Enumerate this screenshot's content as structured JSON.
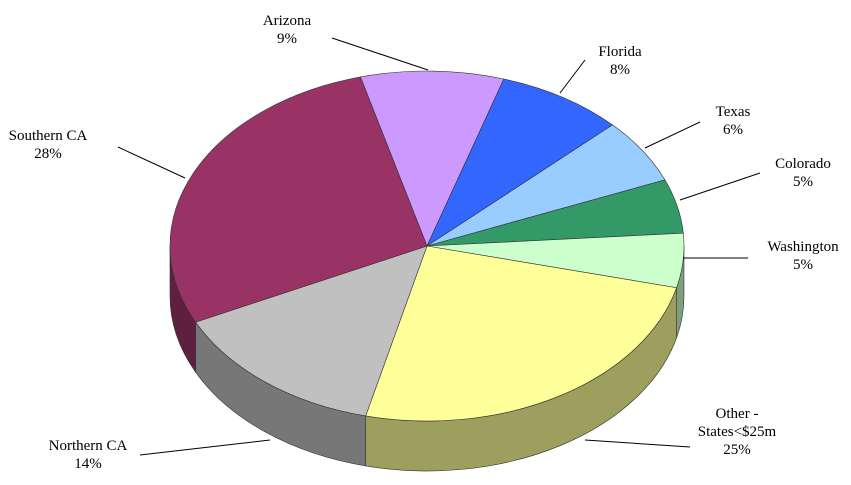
{
  "chart_data": {
    "type": "pie",
    "categories": [
      "Arizona",
      "Florida",
      "Texas",
      "Colorado",
      "Washington",
      "Other - States<$25m",
      "Northern CA",
      "Southern CA"
    ],
    "values": [
      9,
      8,
      6,
      5,
      5,
      25,
      14,
      28
    ],
    "value_labels": [
      "9%",
      "8%",
      "6%",
      "5%",
      "5%",
      "25%",
      "14%",
      "28%"
    ],
    "colors": [
      "#cc99ff",
      "#3366ff",
      "#99ccff",
      "#339966",
      "#ccffcc",
      "#ffff99",
      "#c0c0c0",
      "#993366"
    ]
  }
}
